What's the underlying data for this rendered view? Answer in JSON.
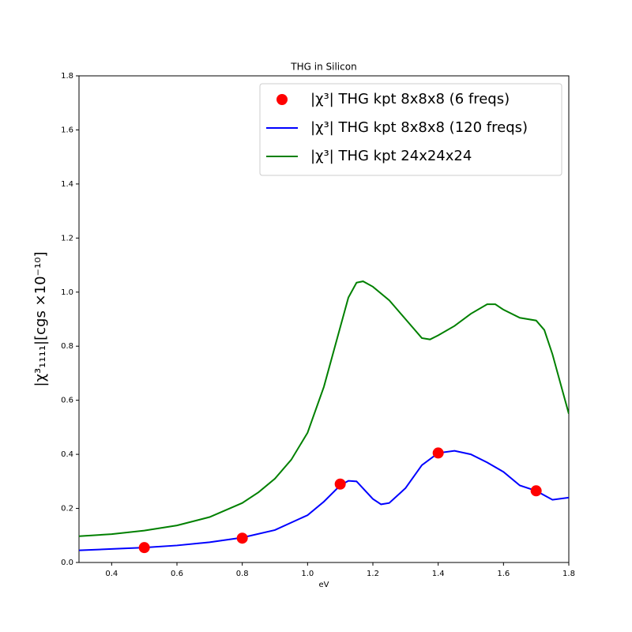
{
  "chart_data": {
    "type": "line",
    "title": "THG in Silicon",
    "x_label": "eV",
    "y_label": "|χ³₁₁₁₁|[cgs  ×10⁻¹⁰]",
    "xlim": [
      0.3,
      1.8
    ],
    "ylim": [
      0,
      1.8
    ],
    "xticks": [
      0.4,
      0.6,
      0.8,
      {
        "value": 1,
        "label": "1.0"
      },
      1.2,
      1.4,
      1.6,
      1.8
    ],
    "yticks": [
      {
        "value": 0,
        "label": "0.0"
      },
      0.2,
      0.4,
      0.6,
      0.8,
      {
        "value": 1,
        "label": "1.0"
      },
      1.2,
      1.4,
      1.6,
      1.8
    ],
    "grid": false,
    "legend": "upper right",
    "series": [
      {
        "name": "|χ³| THG kpt 8x8x8 (6 freqs)",
        "type": "scatter",
        "color": "#ff0000",
        "x": [
          0.5,
          0.8,
          1.1,
          1.4,
          1.7
        ],
        "values": [
          0.055,
          0.09,
          0.29,
          0.405,
          0.265
        ]
      },
      {
        "name": "|χ³| THG kpt 8x8x8 (120 freqs)",
        "type": "line",
        "color": "#0000ff",
        "x": [
          0.3,
          0.4,
          0.5,
          0.6,
          0.7,
          0.8,
          0.9,
          1.0,
          1.05,
          1.1,
          1.125,
          1.15,
          1.2,
          1.225,
          1.25,
          1.3,
          1.35,
          1.4,
          1.45,
          1.5,
          1.55,
          1.6,
          1.65,
          1.7,
          1.75,
          1.8
        ],
        "values": [
          0.045,
          0.05,
          0.055,
          0.063,
          0.075,
          0.092,
          0.12,
          0.175,
          0.225,
          0.285,
          0.302,
          0.3,
          0.235,
          0.215,
          0.22,
          0.275,
          0.36,
          0.405,
          0.413,
          0.4,
          0.37,
          0.335,
          0.285,
          0.265,
          0.232,
          0.24
        ]
      },
      {
        "name": "|χ³| THG kpt 24x24x24",
        "type": "line",
        "color": "#008000",
        "x": [
          0.3,
          0.4,
          0.5,
          0.6,
          0.7,
          0.8,
          0.85,
          0.9,
          0.95,
          1.0,
          1.05,
          1.1,
          1.125,
          1.15,
          1.17,
          1.2,
          1.25,
          1.3,
          1.35,
          1.375,
          1.4,
          1.45,
          1.5,
          1.55,
          1.575,
          1.6,
          1.65,
          1.7,
          1.725,
          1.75,
          1.8
        ],
        "values": [
          0.097,
          0.105,
          0.118,
          0.137,
          0.168,
          0.22,
          0.26,
          0.31,
          0.38,
          0.48,
          0.65,
          0.87,
          0.98,
          1.035,
          1.04,
          1.02,
          0.97,
          0.9,
          0.83,
          0.825,
          0.84,
          0.875,
          0.92,
          0.955,
          0.955,
          0.935,
          0.905,
          0.895,
          0.86,
          0.77,
          0.55
        ]
      }
    ]
  }
}
